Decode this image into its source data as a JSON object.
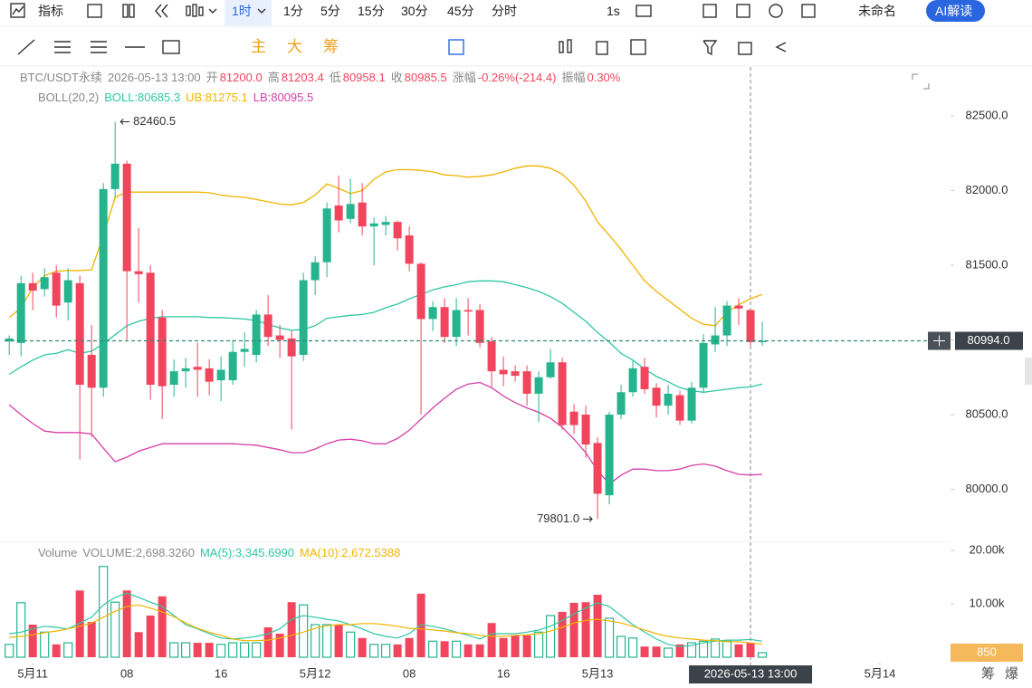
{
  "toolbar": {
    "indicator": "指标",
    "intervals": [
      "1时",
      "1分",
      "5分",
      "15分",
      "30分",
      "45分",
      "分时"
    ],
    "speed": "1s",
    "layout_name": "未命名",
    "ai": "AI解读"
  },
  "tools": {
    "labels": [
      "主",
      "大",
      "筹"
    ]
  },
  "footer": {
    "buttons": [
      "筹",
      "爆"
    ]
  },
  "header": {
    "symbol": "BTC/USDT永续",
    "time": "2026-05-13 13:00",
    "fields": [
      {
        "label": "开",
        "value": "81200.0"
      },
      {
        "label": "高",
        "value": "81203.4"
      },
      {
        "label": "低",
        "value": "80958.1"
      },
      {
        "label": "收",
        "value": "80985.5"
      },
      {
        "label": "涨幅",
        "value": "-0.26%(-214.4)"
      },
      {
        "label": "振幅",
        "value": "0.30%"
      }
    ]
  },
  "chart_data": [
    {
      "type": "candlestick",
      "indicator": "BOLL(20,2)",
      "up_color": "#25b48e",
      "down_color": "#f0455d",
      "xlim": [
        -0.4,
        80
      ],
      "xticks": [
        {
          "value": 2,
          "label": "5月11"
        },
        {
          "value": 10,
          "label": "08"
        },
        {
          "value": 18,
          "label": "16"
        },
        {
          "value": 26,
          "label": "5月12"
        },
        {
          "value": 34,
          "label": "08"
        },
        {
          "value": 42,
          "label": "16"
        },
        {
          "value": 50,
          "label": "5月13"
        },
        {
          "value": 74,
          "label": "5月14"
        }
      ],
      "ylim": [
        79700,
        82791
      ],
      "yticks": [
        {
          "value": 80000,
          "label": "80000.0"
        },
        {
          "value": 80500,
          "label": "80500.0"
        },
        {
          "value": 81000,
          "label": "81000.0"
        },
        {
          "value": 81500,
          "label": "81500.0"
        },
        {
          "value": 82000,
          "label": "82000.0"
        },
        {
          "value": 82500,
          "label": "82500.0"
        }
      ],
      "open": [
        80990,
        80980,
        81380,
        81340,
        81450,
        81250,
        81380,
        80900,
        80680,
        82010,
        82180,
        81460,
        81450,
        81150,
        80700,
        80790,
        80820,
        80810,
        80730,
        80730,
        80920,
        80900,
        81170,
        81030,
        81010,
        80900,
        81400,
        81520,
        81900,
        81810,
        81920,
        81760,
        81770,
        81790,
        81700,
        81510,
        81140,
        81220,
        81020,
        81200,
        81200,
        80990,
        80800,
        80790,
        80790,
        80640,
        80750,
        80850,
        80520,
        80500,
        80310,
        79960,
        80500,
        80650,
        80820,
        80680,
        80560,
        80630,
        80460,
        80680,
        80970,
        81030,
        81230,
        81200,
        80985
      ],
      "close": [
        81010,
        81380,
        81330,
        81420,
        81230,
        81400,
        80700,
        80680,
        82010,
        82180,
        81460,
        81440,
        80700,
        80690,
        80790,
        80810,
        80800,
        80720,
        80800,
        80920,
        80940,
        81170,
        81020,
        81000,
        80890,
        81400,
        81520,
        81880,
        81800,
        81910,
        81760,
        81780,
        81790,
        81680,
        81510,
        81140,
        81220,
        81020,
        81200,
        81190,
        80980,
        80790,
        80770,
        80760,
        80640,
        80750,
        80850,
        80430,
        80430,
        80300,
        79970,
        80500,
        80650,
        80810,
        80670,
        80560,
        80640,
        80460,
        80680,
        80980,
        81030,
        81230,
        81210,
        80985.5,
        80994
      ],
      "high": [
        81030,
        81430,
        81450,
        81480,
        81500,
        81480,
        81430,
        81100,
        82050,
        82460.5,
        82200,
        81750,
        81500,
        81200,
        80870,
        80880,
        80980,
        80870,
        80890,
        81000,
        81050,
        81200,
        81300,
        81100,
        81060,
        81450,
        81560,
        81920,
        82100,
        82080,
        82050,
        81820,
        81830,
        81800,
        81760,
        81520,
        81260,
        81280,
        81280,
        81280,
        81240,
        81020,
        80890,
        80830,
        80830,
        80790,
        80940,
        80880,
        80570,
        80560,
        80350,
        80520,
        80700,
        80860,
        80880,
        80710,
        80700,
        80660,
        80720,
        81040,
        81220,
        81260,
        81280,
        81203.4,
        81120
      ],
      "low": [
        80900,
        80890,
        81200,
        81290,
        81150,
        81130,
        80200,
        80350,
        80620,
        81950,
        81000,
        81250,
        80600,
        80470,
        80620,
        80680,
        80620,
        80630,
        80590,
        80700,
        80820,
        80850,
        80960,
        80880,
        80400,
        80860,
        81300,
        81420,
        81720,
        81780,
        81700,
        81500,
        81700,
        81600,
        81460,
        80500,
        81060,
        80980,
        80960,
        81030,
        80950,
        80680,
        80690,
        80720,
        80560,
        80450,
        80740,
        80400,
        80370,
        80210,
        79801,
        79900,
        80470,
        80620,
        80640,
        80480,
        80500,
        80430,
        80440,
        80650,
        80920,
        80960,
        81100,
        80958.1,
        80960
      ],
      "series": [
        {
          "name": "BOLL:80685.3",
          "color": "#2ec7a4",
          "values": [
            80770,
            80820,
            80865,
            80900,
            80910,
            80935,
            80910,
            80925,
            80975,
            81035,
            81095,
            81125,
            81145,
            81155,
            81155,
            81155,
            81155,
            81150,
            81150,
            81145,
            81140,
            81130,
            81105,
            81080,
            81065,
            81070,
            81095,
            81145,
            81155,
            81165,
            81170,
            81185,
            81215,
            81240,
            81275,
            81305,
            81335,
            81355,
            81370,
            81390,
            81395,
            81395,
            81390,
            81370,
            81350,
            81325,
            81290,
            81245,
            81185,
            81125,
            81050,
            80985,
            80910,
            80865,
            80805,
            80755,
            80720,
            80680,
            80660,
            80650,
            80660,
            80670,
            80680,
            80685.3,
            80705
          ]
        },
        {
          "name": "UB:81275.1",
          "color": "#f0b400",
          "values": [
            81150,
            81215,
            81350,
            81430,
            81460,
            81465,
            81465,
            81470,
            81700,
            81955,
            81990,
            81990,
            81990,
            81990,
            81990,
            81990,
            81990,
            81985,
            81970,
            81960,
            81955,
            81940,
            81925,
            81910,
            81905,
            81920,
            81970,
            82045,
            82015,
            81980,
            82000,
            82075,
            82125,
            82140,
            82140,
            82135,
            82125,
            82105,
            82100,
            82090,
            82095,
            82105,
            82125,
            82150,
            82165,
            82165,
            82150,
            82110,
            82035,
            81930,
            81790,
            81700,
            81605,
            81500,
            81395,
            81325,
            81265,
            81205,
            81145,
            81105,
            81095,
            81185,
            81235,
            81275.1,
            81305
          ]
        },
        {
          "name": "LB:80095.5",
          "color": "#d63fa8",
          "values": [
            80565,
            80500,
            80440,
            80390,
            80380,
            80380,
            80380,
            80370,
            80275,
            80185,
            80215,
            80255,
            80280,
            80305,
            80305,
            80305,
            80305,
            80305,
            80305,
            80305,
            80300,
            80295,
            80280,
            80265,
            80245,
            80245,
            80270,
            80305,
            80330,
            80335,
            80325,
            80305,
            80305,
            80340,
            80395,
            80470,
            80545,
            80610,
            80670,
            80705,
            80715,
            80680,
            80625,
            80580,
            80545,
            80515,
            80475,
            80415,
            80335,
            80245,
            80125,
            80035,
            80095,
            80135,
            80135,
            80125,
            80125,
            80135,
            80160,
            80170,
            80155,
            80125,
            80100,
            80095.5,
            80100
          ]
        }
      ],
      "annotations": [
        {
          "text": "82460.5"
        },
        {
          "text": "79801.0"
        }
      ],
      "last_price": 80994,
      "last_price_label": "80994.0"
    },
    {
      "type": "bar",
      "title": "Volume",
      "value_name": "VOLUME:2,698.3260",
      "ylim": [
        0,
        21356
      ],
      "yticks": [
        {
          "value": 10000,
          "label": "10.00k"
        },
        {
          "value": 20000,
          "label": "20.00k"
        }
      ],
      "values": [
        2400,
        10200,
        6100,
        4700,
        2400,
        2700,
        12500,
        6600,
        17000,
        10300,
        12500,
        4700,
        7800,
        11400,
        2700,
        2700,
        2700,
        2700,
        2400,
        2700,
        2700,
        2700,
        5600,
        4400,
        10300,
        9800,
        6100,
        6100,
        6100,
        4700,
        3600,
        2400,
        2400,
        2400,
        3600,
        11900,
        3000,
        3000,
        3000,
        2400,
        2400,
        6400,
        3600,
        4100,
        4100,
        4700,
        7800,
        8500,
        10200,
        10300,
        11700,
        7300,
        3900,
        3600,
        2000,
        2000,
        1700,
        2400,
        2700,
        3000,
        3400,
        3000,
        2400,
        2698.326,
        850
      ],
      "series": [
        {
          "name": "MA(5):3,345.6990",
          "color": "#2ec7a4",
          "values": [
            4400,
            4700,
            5300,
            5800,
            5600,
            5300,
            6400,
            7500,
            9800,
            11200,
            12000,
            11200,
            10300,
            9500,
            7800,
            6100,
            5300,
            4400,
            3600,
            3400,
            3600,
            3900,
            4400,
            5300,
            7100,
            7800,
            7500,
            7100,
            6800,
            6100,
            5300,
            4400,
            3900,
            3600,
            4400,
            6100,
            5800,
            5300,
            4700,
            4100,
            3400,
            4400,
            4400,
            4400,
            4700,
            5100,
            5800,
            6900,
            8100,
            9200,
            10200,
            9500,
            7800,
            6100,
            4700,
            3400,
            2400,
            2000,
            2200,
            2700,
            3000,
            3200,
            3200,
            3345.699,
            3000
          ]
        },
        {
          "name": "MA(10):2,672.5388",
          "color": "#f0b400",
          "values": [
            3700,
            3900,
            4200,
            4600,
            4900,
            5300,
            5800,
            6400,
            7500,
            8600,
            9500,
            9800,
            9200,
            8500,
            7600,
            6400,
            5400,
            4700,
            4100,
            3400,
            3100,
            3100,
            3200,
            3600,
            4100,
            4700,
            5400,
            5900,
            6100,
            6100,
            6300,
            6300,
            6100,
            5800,
            5400,
            5300,
            5100,
            4900,
            4600,
            4400,
            4100,
            3900,
            3900,
            4100,
            4200,
            4400,
            4900,
            5600,
            6400,
            6900,
            7100,
            6800,
            6400,
            5800,
            5100,
            4400,
            3900,
            3600,
            3400,
            3200,
            3100,
            2900,
            2900,
            2672.5388,
            2500
          ]
        }
      ]
    }
  ]
}
